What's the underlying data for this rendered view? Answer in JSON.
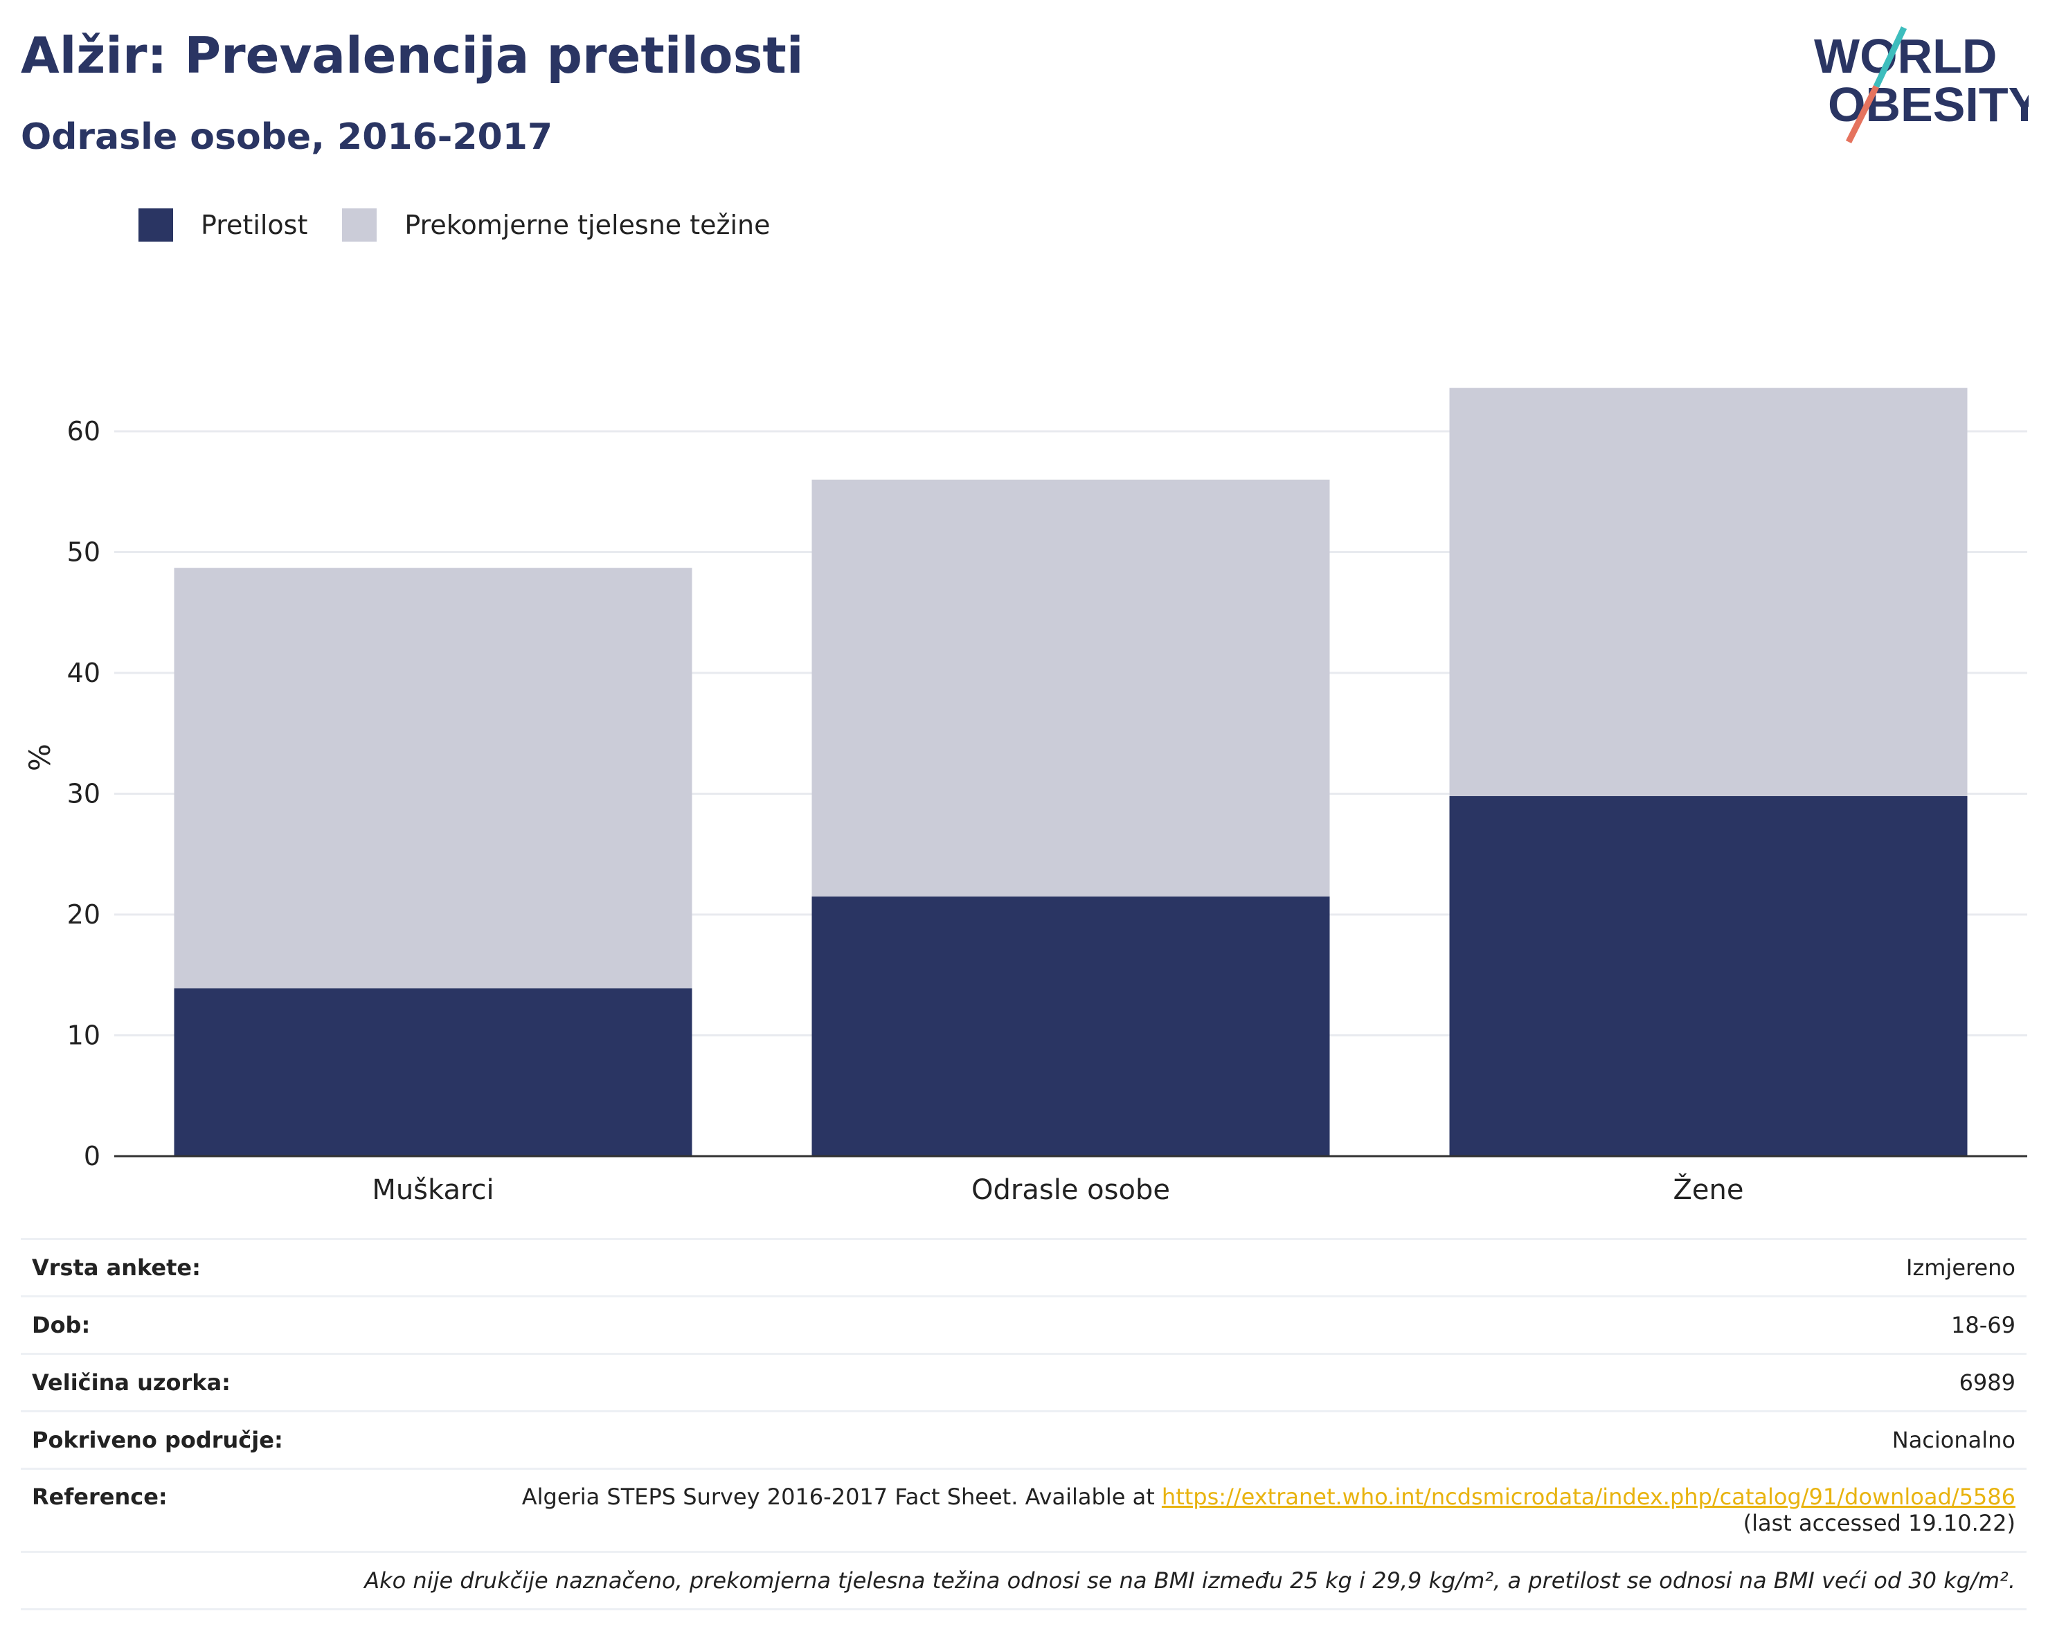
{
  "header": {
    "title": "Alžir: Prevalencija pretilosti",
    "subtitle": "Odrasle osobe, 2016-2017"
  },
  "logo": {
    "line1": "WORLD",
    "line2": "OBESITY",
    "text_color": "#2a3563",
    "slash_colors": [
      "#3dbdbd",
      "#e5735e"
    ]
  },
  "legend": [
    {
      "label": "Pretilost",
      "color": "#2a3563"
    },
    {
      "label": "Prekomjerne tjelesne težine",
      "color": "#cbccd8"
    }
  ],
  "chart_data": {
    "type": "bar",
    "stacked": true,
    "categories": [
      "Muškarci",
      "Odrasle osobe",
      "Žene"
    ],
    "series": [
      {
        "name": "Pretilost",
        "values": [
          13.9,
          21.5,
          29.8
        ],
        "color": "#2a3563"
      },
      {
        "name": "Prekomjerne tjelesne težine",
        "values": [
          34.8,
          34.5,
          33.8
        ],
        "color": "#cbccd8"
      }
    ],
    "ylabel": "%",
    "ylim": [
      0,
      65
    ],
    "yticks": [
      0,
      10,
      20,
      30,
      40,
      50,
      60
    ],
    "grid": true,
    "legend_position": "top-left"
  },
  "info": {
    "rows": [
      {
        "label": "Vrsta ankete:",
        "value": "Izmjereno"
      },
      {
        "label": "Dob:",
        "value": "18-69"
      },
      {
        "label": "Veličina uzorka:",
        "value": "6989"
      },
      {
        "label": "Pokriveno područje:",
        "value": "Nacionalno"
      }
    ],
    "reference": {
      "label": "Reference:",
      "text": "Algeria STEPS Survey 2016-2017 Fact Sheet. Available at ",
      "link": "https://extranet.who.int/ncdsmicrodata/index.php/catalog/91/download/5586",
      "accessed": "(last accessed 19.10.22)"
    },
    "note": "Ako nije drukčije naznačeno, prekomjerna tjelesna težina odnosi se na BMI između 25 kg i 29,9 kg/m², a pretilost se odnosi na BMI veći od 30 kg/m²."
  }
}
